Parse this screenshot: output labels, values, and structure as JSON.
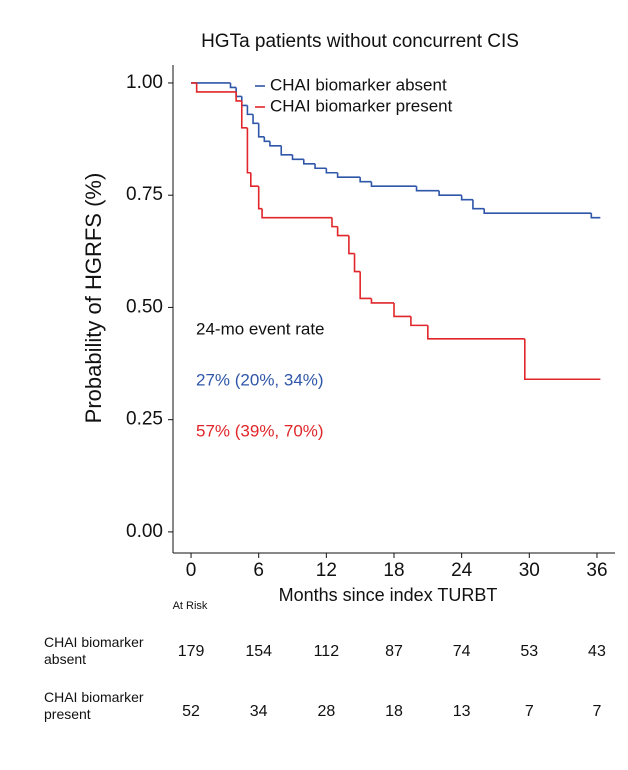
{
  "chart_data": {
    "type": "step",
    "title": "HGTa patients without concurrent CIS",
    "x_label": "Months since index TURBT",
    "y_label": "Probability of HGRFS (%)",
    "xlim": [
      -1.6,
      37.6
    ],
    "ylim": [
      -0.047,
      1.04
    ],
    "xticks": [
      0,
      6,
      12,
      18,
      24,
      30,
      36
    ],
    "yticks": [
      {
        "value": 0,
        "label": "0.00"
      },
      0.25,
      {
        "value": 0.5,
        "label": "0.50"
      },
      0.75,
      {
        "value": 1,
        "label": "1.00"
      }
    ],
    "series": [
      {
        "name": "CHAI biomarker absent",
        "color": "#2f56a8",
        "x": [
          0,
          3.5,
          4,
          4.5,
          5,
          5.5,
          6,
          6.5,
          7,
          8,
          9,
          10,
          11,
          12,
          13,
          15,
          16,
          20,
          22,
          24,
          25,
          26,
          35.5,
          36.3
        ],
        "values": [
          1.0,
          0.99,
          0.97,
          0.95,
          0.93,
          0.91,
          0.88,
          0.87,
          0.86,
          0.84,
          0.83,
          0.82,
          0.81,
          0.8,
          0.79,
          0.78,
          0.77,
          0.76,
          0.75,
          0.74,
          0.72,
          0.71,
          0.7,
          0.7
        ]
      },
      {
        "name": "CHAI biomarker present",
        "color": "#e0262a",
        "x": [
          0,
          0.5,
          4,
          4.5,
          5,
          5.3,
          6,
          6.3,
          12.5,
          13,
          14,
          14.5,
          15,
          16,
          18,
          19.5,
          21,
          29.6,
          36.3
        ],
        "values": [
          1.0,
          0.98,
          0.96,
          0.9,
          0.8,
          0.77,
          0.72,
          0.7,
          0.68,
          0.66,
          0.62,
          0.58,
          0.52,
          0.51,
          0.48,
          0.46,
          0.43,
          0.34,
          0.34
        ]
      }
    ],
    "annotations": [
      {
        "text": "24-mo event rate",
        "color": "#111111"
      },
      {
        "text": "27% (20%, 34%)",
        "color": "#2f56a8"
      },
      {
        "text": "57% (39%, 70%)",
        "color": "#e0262a"
      }
    ],
    "risk_table": {
      "title": "At Risk",
      "rows": [
        {
          "label": "CHAI biomarker absent",
          "values": [
            179,
            154,
            112,
            87,
            74,
            53,
            43
          ]
        },
        {
          "label": "CHAI biomarker present",
          "values": [
            52,
            34,
            28,
            18,
            13,
            7,
            7
          ]
        }
      ]
    }
  }
}
